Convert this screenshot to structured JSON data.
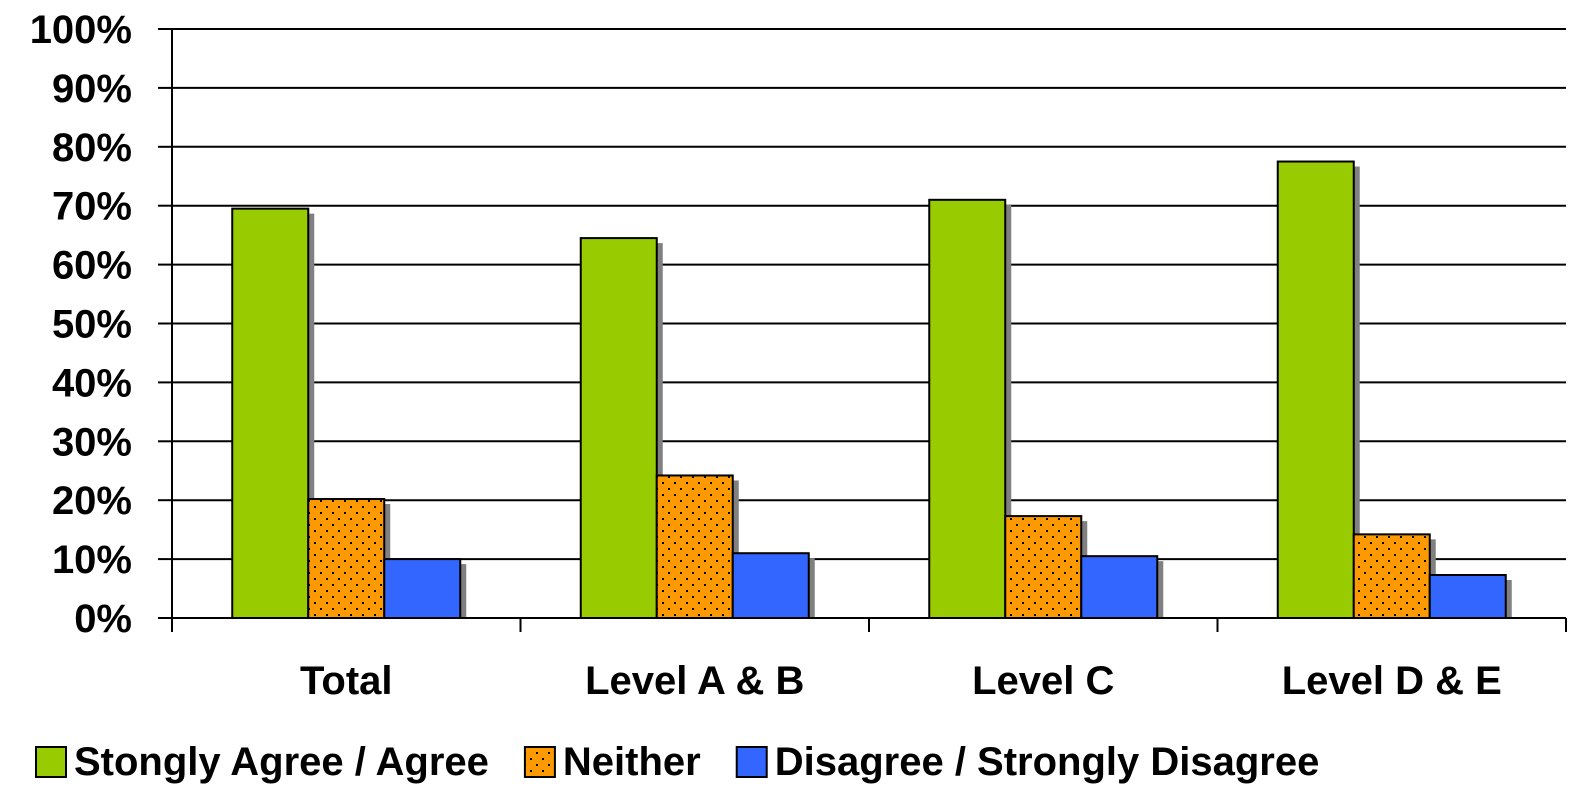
{
  "chart_data": {
    "type": "bar",
    "title": "",
    "xlabel": "",
    "ylabel": "",
    "categories": [
      "Total",
      "Level A & B",
      "Level C",
      "Level D & E"
    ],
    "series": [
      {
        "name": "Stongly Agree / Agree",
        "values": [
          69.5,
          64.5,
          71.0,
          77.5
        ],
        "color": "#99CC00",
        "pattern": "solid"
      },
      {
        "name": "Neither",
        "values": [
          20.2,
          24.2,
          17.3,
          14.2
        ],
        "color": "#FF9900",
        "pattern": "dots"
      },
      {
        "name": "Disagree / Strongly Disagree",
        "values": [
          10.0,
          11.0,
          10.5,
          7.3
        ],
        "color": "#3366FF",
        "pattern": "solid"
      }
    ],
    "ylim": [
      0,
      100
    ],
    "y_ticks": [
      "0%",
      "10%",
      "20%",
      "30%",
      "40%",
      "50%",
      "60%",
      "70%",
      "80%",
      "90%",
      "100%"
    ],
    "grid": true,
    "legend_position": "bottom"
  }
}
